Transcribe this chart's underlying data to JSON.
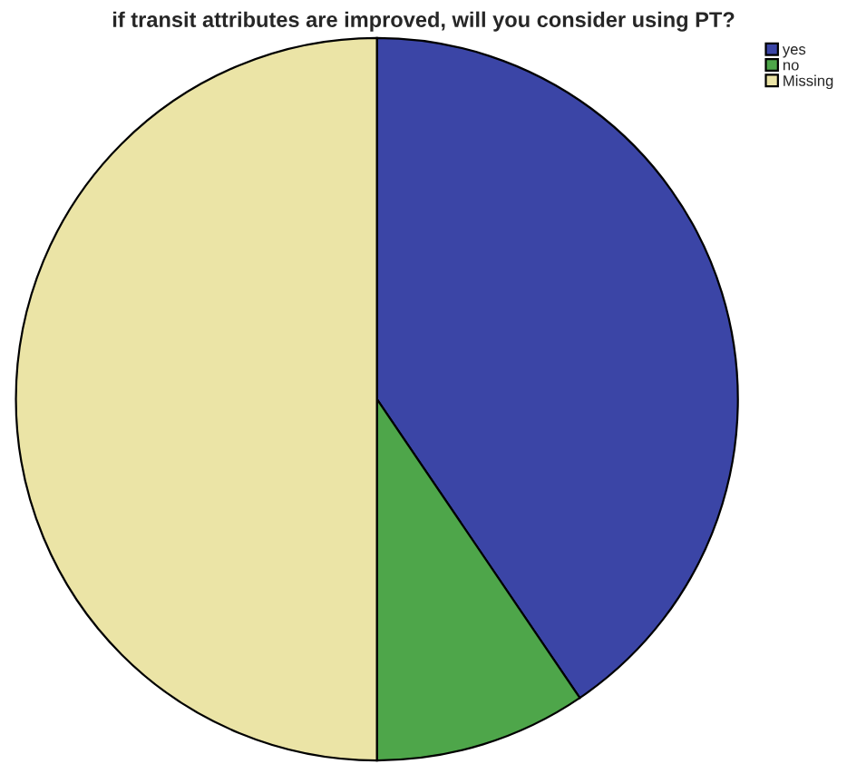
{
  "chart_data": {
    "type": "pie",
    "title": "if transit attributes are improved, will you consider using PT?",
    "categories": [
      "yes",
      "no",
      "Missing"
    ],
    "values": [
      40.5,
      9.5,
      50
    ],
    "colors": [
      "#3b45a6",
      "#4ea64a",
      "#ebe4a6"
    ],
    "legend": "top right"
  }
}
